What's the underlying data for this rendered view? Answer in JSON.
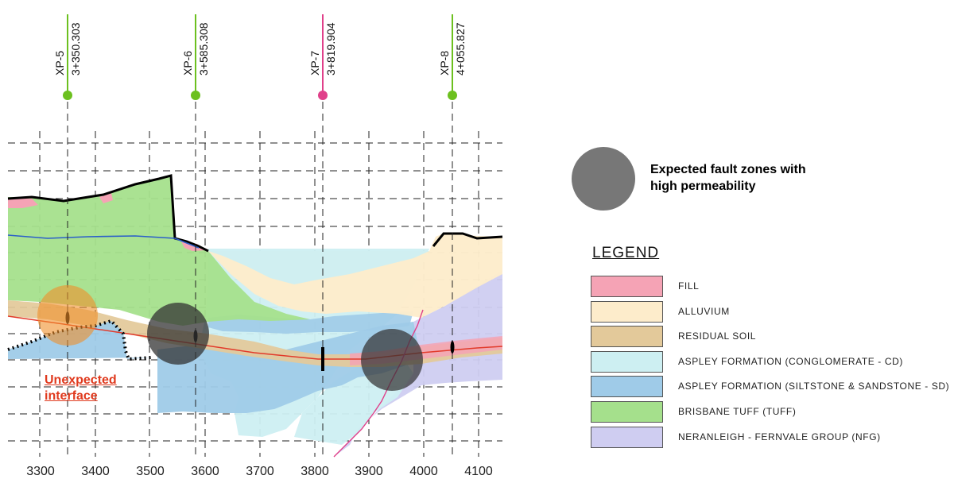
{
  "section": {
    "chainages": [
      {
        "id": "XP-5",
        "chainage": "3+350.303",
        "color": "#6cc01f"
      },
      {
        "id": "XP-6",
        "chainage": "3+585.308",
        "color": "#6cc01f"
      },
      {
        "id": "XP-7",
        "chainage": "3+819.904",
        "color": "#e0408a"
      },
      {
        "id": "XP-8",
        "chainage": "4+055.827",
        "color": "#6cc01f"
      }
    ],
    "x_axis_ticks": [
      "3300",
      "3400",
      "3500",
      "3600",
      "3700",
      "3800",
      "3900",
      "4000",
      "4100"
    ],
    "callout": {
      "line1": "Unexpected",
      "line2": "interface",
      "color": "#e03a1e"
    }
  },
  "fault_key": {
    "label_line1": "Expected fault zones with",
    "label_line2": "high permeability",
    "color": "#777777"
  },
  "legend": {
    "title": "LEGEND",
    "items": [
      {
        "label": "FILL",
        "color": "#f5a3b5"
      },
      {
        "label": "ALLUVIUM",
        "color": "#fdeccb"
      },
      {
        "label": "RESIDUAL SOIL",
        "color": "#e3c99a"
      },
      {
        "label": "ASPLEY FORMATION (CONGLOMERATE - CD)",
        "color": "#cdeff2"
      },
      {
        "label": "ASPLEY FORMATION (SILTSTONE & SANDSTONE - SD)",
        "color": "#9fcbe8"
      },
      {
        "label": "BRISBANE TUFF (TUFF)",
        "color": "#a5e08c"
      },
      {
        "label": "NERANLEIGH - FERNVALE GROUP (NFG)",
        "color": "#cfcdf1"
      }
    ]
  }
}
